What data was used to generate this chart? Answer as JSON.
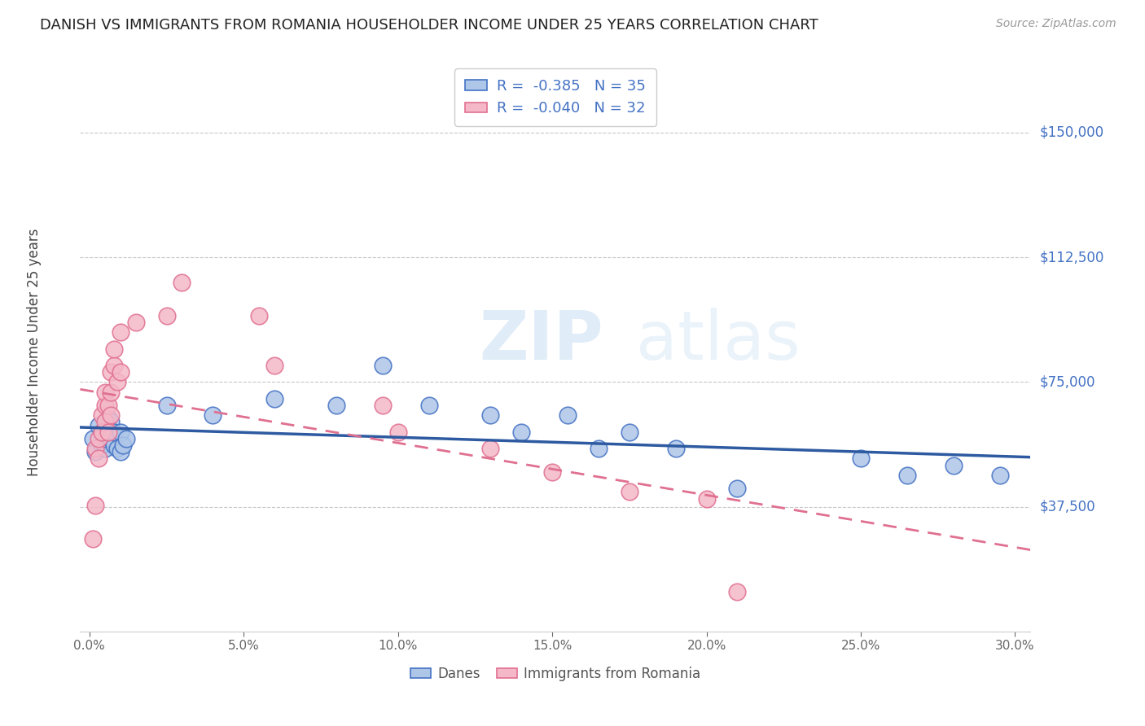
{
  "title": "DANISH VS IMMIGRANTS FROM ROMANIA HOUSEHOLDER INCOME UNDER 25 YEARS CORRELATION CHART",
  "source": "Source: ZipAtlas.com",
  "ylabel": "Householder Income Under 25 years",
  "ylabel_ticks_label": [
    "$37,500",
    "$75,000",
    "$112,500",
    "$150,000"
  ],
  "ylabel_ticks_val": [
    37500,
    75000,
    112500,
    150000
  ],
  "ylim": [
    0,
    168000
  ],
  "xlim": [
    -0.003,
    0.305
  ],
  "danes_R": "-0.385",
  "danes_N": "35",
  "romania_R": "-0.040",
  "romania_N": "32",
  "danes_color": "#aec6e8",
  "danes_edge_color": "#4472c4",
  "romania_color": "#f4b8c8",
  "romania_edge_color": "#e07090",
  "danes_line_color": "#2d5aa0",
  "romania_line_color": "#e07090",
  "danes_scatter_x": [
    0.001,
    0.002,
    0.003,
    0.004,
    0.004,
    0.005,
    0.005,
    0.006,
    0.006,
    0.007,
    0.007,
    0.008,
    0.008,
    0.009,
    0.01,
    0.01,
    0.011,
    0.012,
    0.025,
    0.04,
    0.06,
    0.08,
    0.095,
    0.11,
    0.13,
    0.14,
    0.155,
    0.165,
    0.175,
    0.19,
    0.21,
    0.25,
    0.265,
    0.28,
    0.295
  ],
  "danes_scatter_y": [
    58000,
    54000,
    62000,
    60000,
    56000,
    55000,
    58000,
    64000,
    60000,
    58000,
    63000,
    56000,
    60000,
    55000,
    54000,
    60000,
    56000,
    58000,
    68000,
    65000,
    70000,
    68000,
    80000,
    68000,
    65000,
    60000,
    65000,
    55000,
    60000,
    55000,
    43000,
    52000,
    47000,
    50000,
    47000
  ],
  "romania_scatter_x": [
    0.001,
    0.002,
    0.002,
    0.003,
    0.003,
    0.004,
    0.004,
    0.005,
    0.005,
    0.005,
    0.006,
    0.006,
    0.007,
    0.007,
    0.007,
    0.008,
    0.008,
    0.009,
    0.01,
    0.01,
    0.015,
    0.025,
    0.03,
    0.055,
    0.06,
    0.095,
    0.1,
    0.13,
    0.15,
    0.175,
    0.2,
    0.21
  ],
  "romania_scatter_y": [
    28000,
    38000,
    55000,
    58000,
    52000,
    60000,
    65000,
    68000,
    63000,
    72000,
    60000,
    68000,
    78000,
    72000,
    65000,
    80000,
    85000,
    75000,
    78000,
    90000,
    93000,
    95000,
    105000,
    95000,
    80000,
    68000,
    60000,
    55000,
    48000,
    42000,
    40000,
    12000
  ],
  "watermark_zip": "ZIP",
  "watermark_atlas": "atlas",
  "background_color": "#ffffff",
  "grid_color": "#c8c8c8"
}
